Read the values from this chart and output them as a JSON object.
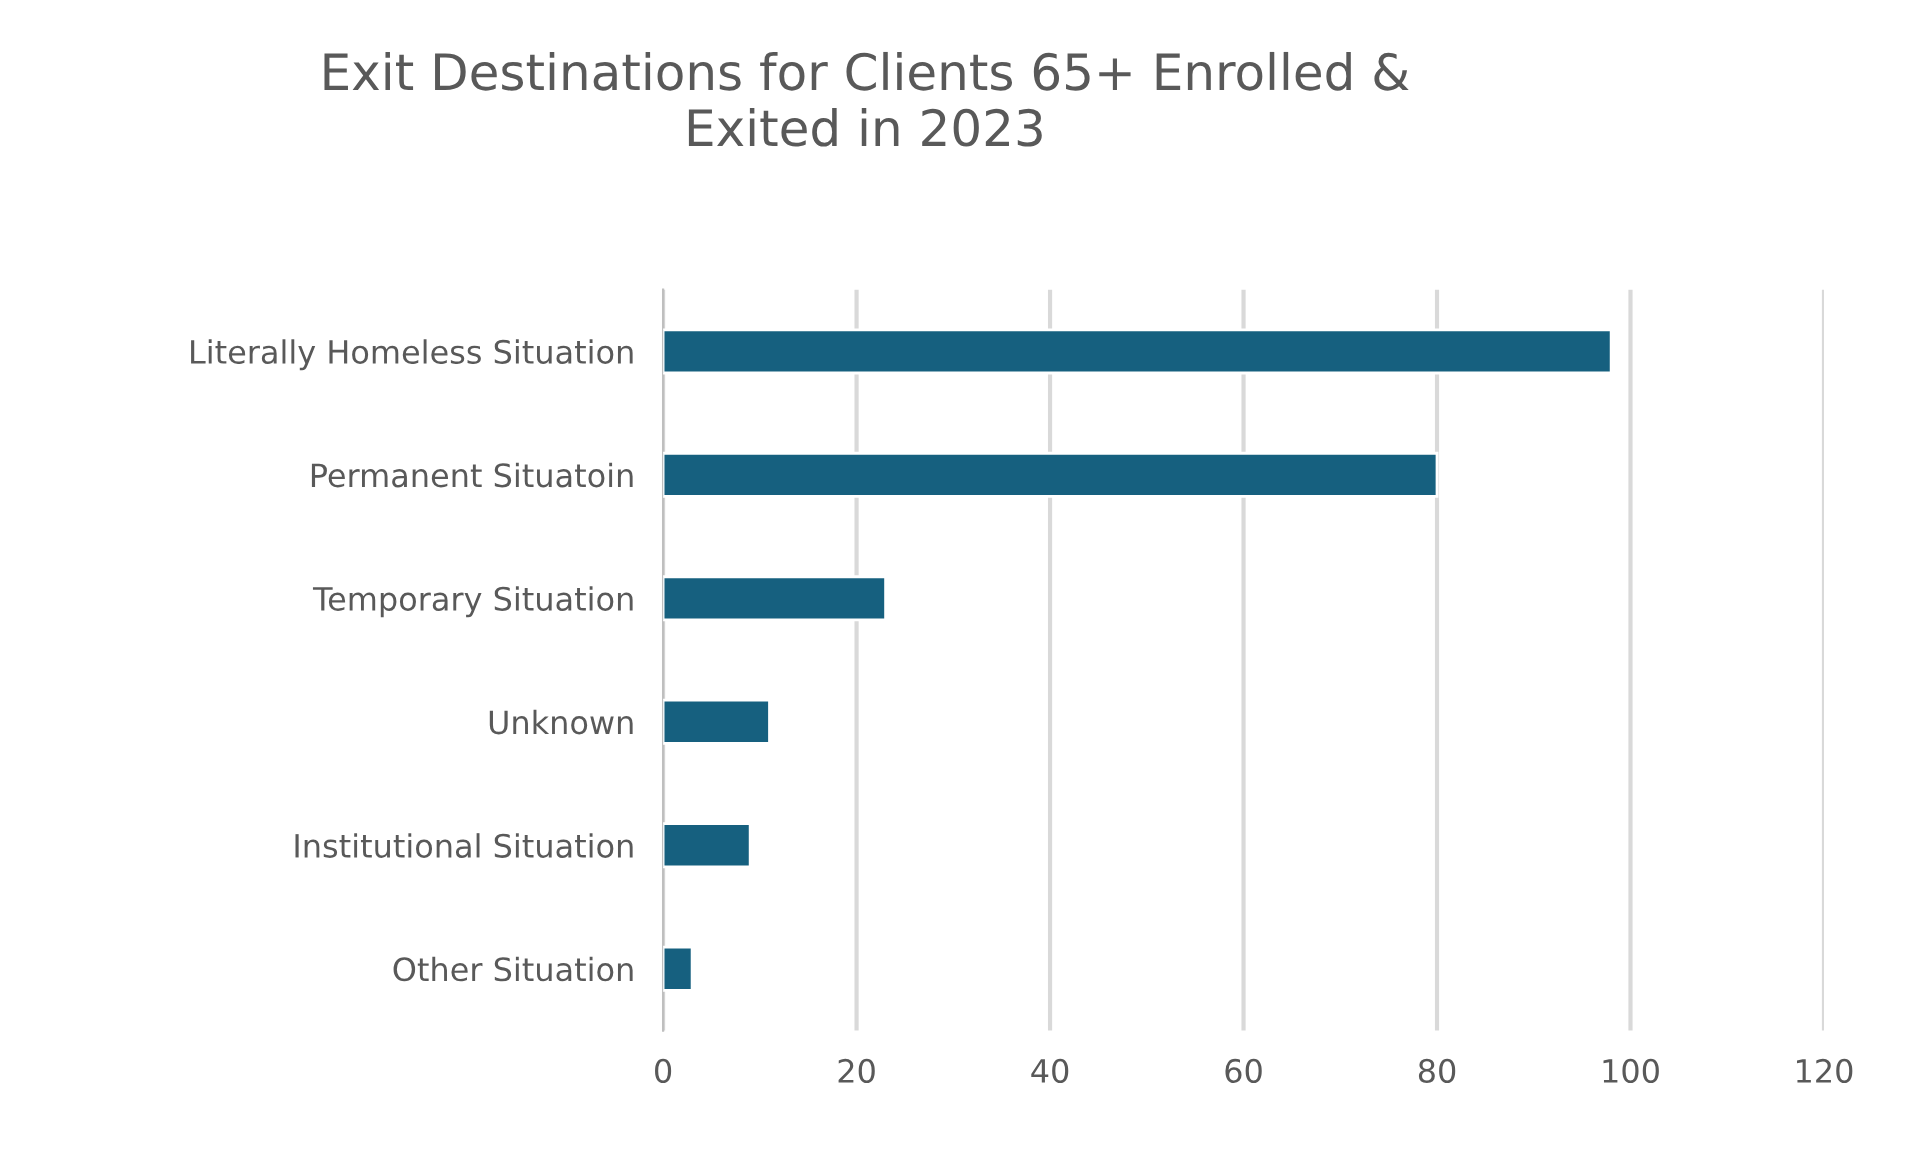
{
  "chart_data": {
    "type": "bar",
    "orientation": "horizontal",
    "title": "Exit Destinations for Clients 65+ Enrolled &\nExited in 2023",
    "categories": [
      "Literally Homeless Situation",
      "Permanent Situatoin",
      "Temporary Situation",
      "Unknown",
      "Institutional Situation",
      "Other Situation"
    ],
    "values": [
      98,
      80,
      23,
      11,
      9,
      3
    ],
    "color": "#16607f",
    "xlim": [
      0,
      120
    ],
    "xticks": [
      0,
      20,
      40,
      60,
      80,
      100,
      120
    ],
    "grid": "x",
    "legend": false
  }
}
